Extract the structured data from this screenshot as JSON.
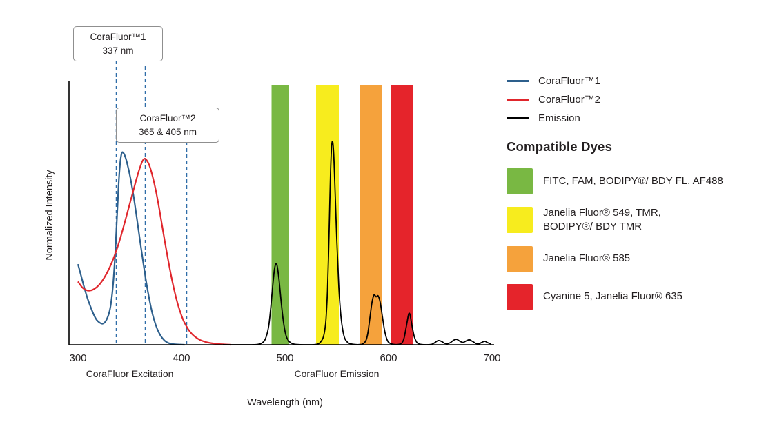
{
  "chart_data": {
    "type": "line",
    "title": "",
    "xlabel": "Wavelength (nm)",
    "ylabel": "Normalized Intensity",
    "xlim": [
      300,
      700
    ],
    "ylim": [
      0,
      1.36
    ],
    "x_ticks": [
      300,
      400,
      500,
      600,
      700
    ],
    "grid": false,
    "region_labels": [
      {
        "label": "CoraFluor Excitation",
        "center_nm": 350
      },
      {
        "label": "CoraFluor Emission",
        "center_nm": 550
      }
    ],
    "series": [
      {
        "name": "CoraFluor™1",
        "role": "excitation",
        "color": "#2d5f8c",
        "points": [
          [
            300,
            0.42
          ],
          [
            303,
            0.36
          ],
          [
            306,
            0.3
          ],
          [
            309,
            0.245
          ],
          [
            312,
            0.2
          ],
          [
            315,
            0.16
          ],
          [
            318,
            0.13
          ],
          [
            321,
            0.115
          ],
          [
            324,
            0.11
          ],
          [
            327,
            0.125
          ],
          [
            330,
            0.165
          ],
          [
            332,
            0.22
          ],
          [
            334,
            0.32
          ],
          [
            336,
            0.48
          ],
          [
            338,
            0.7
          ],
          [
            340,
            0.9
          ],
          [
            342,
            0.995
          ],
          [
            344,
            1.0
          ],
          [
            346,
            0.975
          ],
          [
            348,
            0.935
          ],
          [
            351,
            0.86
          ],
          [
            354,
            0.765
          ],
          [
            357,
            0.655
          ],
          [
            360,
            0.54
          ],
          [
            363,
            0.43
          ],
          [
            366,
            0.325
          ],
          [
            369,
            0.235
          ],
          [
            372,
            0.16
          ],
          [
            375,
            0.105
          ],
          [
            378,
            0.065
          ],
          [
            381,
            0.038
          ],
          [
            384,
            0.02
          ],
          [
            387,
            0.01
          ],
          [
            390,
            0.005
          ],
          [
            394,
            0.002
          ],
          [
            398,
            0.001
          ],
          [
            403,
            0
          ]
        ]
      },
      {
        "name": "CoraFluor™2",
        "role": "excitation",
        "color": "#e0262c",
        "points": [
          [
            300,
            0.33
          ],
          [
            304,
            0.3
          ],
          [
            308,
            0.285
          ],
          [
            312,
            0.283
          ],
          [
            316,
            0.292
          ],
          [
            320,
            0.31
          ],
          [
            324,
            0.338
          ],
          [
            328,
            0.375
          ],
          [
            332,
            0.42
          ],
          [
            336,
            0.475
          ],
          [
            340,
            0.54
          ],
          [
            344,
            0.615
          ],
          [
            348,
            0.695
          ],
          [
            352,
            0.775
          ],
          [
            356,
            0.855
          ],
          [
            359,
            0.91
          ],
          [
            362,
            0.955
          ],
          [
            364,
            0.97
          ],
          [
            366,
            0.965
          ],
          [
            369,
            0.935
          ],
          [
            372,
            0.88
          ],
          [
            375,
            0.81
          ],
          [
            378,
            0.725
          ],
          [
            381,
            0.63
          ],
          [
            384,
            0.535
          ],
          [
            387,
            0.445
          ],
          [
            390,
            0.36
          ],
          [
            393,
            0.285
          ],
          [
            396,
            0.22
          ],
          [
            399,
            0.168
          ],
          [
            402,
            0.125
          ],
          [
            406,
            0.085
          ],
          [
            410,
            0.057
          ],
          [
            414,
            0.038
          ],
          [
            418,
            0.025
          ],
          [
            423,
            0.015
          ],
          [
            428,
            0.009
          ],
          [
            434,
            0.005
          ],
          [
            440,
            0.002
          ],
          [
            448,
            0
          ]
        ]
      },
      {
        "name": "Emission",
        "role": "emission",
        "color": "#000000",
        "points": [
          [
            440,
            0
          ],
          [
            450,
            0
          ],
          [
            460,
            0
          ],
          [
            468,
            0
          ],
          [
            474,
            0.002
          ],
          [
            478,
            0.01
          ],
          [
            481,
            0.03
          ],
          [
            484,
            0.09
          ],
          [
            486,
            0.18
          ],
          [
            488,
            0.3
          ],
          [
            490,
            0.4
          ],
          [
            492,
            0.42
          ],
          [
            494,
            0.35
          ],
          [
            496,
            0.24
          ],
          [
            498,
            0.14
          ],
          [
            500,
            0.07
          ],
          [
            502,
            0.033
          ],
          [
            505,
            0.012
          ],
          [
            508,
            0.004
          ],
          [
            512,
            0.001
          ],
          [
            518,
            0
          ],
          [
            526,
            0
          ],
          [
            531,
            0.003
          ],
          [
            534,
            0.012
          ],
          [
            537,
            0.04
          ],
          [
            539,
            0.1
          ],
          [
            540,
            0.17
          ],
          [
            541,
            0.28
          ],
          [
            542,
            0.46
          ],
          [
            543,
            0.68
          ],
          [
            544,
            0.9
          ],
          [
            545,
            1.03
          ],
          [
            546,
            1.06
          ],
          [
            547,
            1.0
          ],
          [
            548,
            0.86
          ],
          [
            550,
            0.55
          ],
          [
            552,
            0.3
          ],
          [
            554,
            0.15
          ],
          [
            556,
            0.07
          ],
          [
            558,
            0.03
          ],
          [
            561,
            0.01
          ],
          [
            564,
            0.004
          ],
          [
            568,
            0.001
          ],
          [
            572,
            0.001
          ],
          [
            575,
            0.004
          ],
          [
            578,
            0.02
          ],
          [
            580,
            0.06
          ],
          [
            582,
            0.14
          ],
          [
            584,
            0.22
          ],
          [
            586,
            0.26
          ],
          [
            588,
            0.25
          ],
          [
            590,
            0.255
          ],
          [
            592,
            0.22
          ],
          [
            594,
            0.15
          ],
          [
            596,
            0.08
          ],
          [
            598,
            0.035
          ],
          [
            600,
            0.013
          ],
          [
            603,
            0.004
          ],
          [
            606,
            0.001
          ],
          [
            610,
            0.002
          ],
          [
            613,
            0.01
          ],
          [
            615,
            0.035
          ],
          [
            617,
            0.09
          ],
          [
            619,
            0.15
          ],
          [
            620,
            0.165
          ],
          [
            621,
            0.15
          ],
          [
            623,
            0.09
          ],
          [
            625,
            0.04
          ],
          [
            627,
            0.015
          ],
          [
            629,
            0.005
          ],
          [
            632,
            0.001
          ],
          [
            637,
            0
          ],
          [
            642,
            0.003
          ],
          [
            645,
            0.012
          ],
          [
            648,
            0.022
          ],
          [
            651,
            0.018
          ],
          [
            654,
            0.008
          ],
          [
            657,
            0.005
          ],
          [
            660,
            0.012
          ],
          [
            663,
            0.024
          ],
          [
            666,
            0.028
          ],
          [
            669,
            0.018
          ],
          [
            672,
            0.012
          ],
          [
            675,
            0.02
          ],
          [
            678,
            0.026
          ],
          [
            681,
            0.018
          ],
          [
            684,
            0.008
          ],
          [
            687,
            0.004
          ],
          [
            690,
            0.012
          ],
          [
            693,
            0.018
          ],
          [
            696,
            0.01
          ],
          [
            699,
            0.004
          ]
        ]
      }
    ],
    "filter_bands": [
      {
        "name": "green",
        "color": "#79b843",
        "range_nm": [
          487,
          504
        ]
      },
      {
        "name": "yellow",
        "color": "#f7ec1e",
        "range_nm": [
          530,
          552
        ]
      },
      {
        "name": "orange",
        "color": "#f5a23c",
        "range_nm": [
          572,
          594
        ]
      },
      {
        "name": "red",
        "color": "#e5242b",
        "range_nm": [
          602,
          624
        ]
      }
    ],
    "annotations": {
      "dashed_line_color": "#2f6da8",
      "dashed_lines_nm": [
        337,
        365,
        405
      ],
      "callouts": [
        {
          "line1": "CoraFluor™1",
          "line2": "337 nm"
        },
        {
          "line1": "CoraFluor™2",
          "line2": "365 & 405 nm"
        }
      ]
    }
  },
  "legend": {
    "items": [
      {
        "label": "CoraFluor™1",
        "color": "#2d5f8c"
      },
      {
        "label": "CoraFluor™2",
        "color": "#e0262c"
      },
      {
        "label": "Emission",
        "color": "#000000"
      }
    ]
  },
  "dyes": {
    "heading": "Compatible Dyes",
    "items": [
      {
        "label": "FITC, FAM, BODIPY®/ BDY FL, AF488",
        "color": "#79b843"
      },
      {
        "label": "Janelia Fluor® 549, TMR,\nBODIPY®/ BDY TMR",
        "color": "#f7ec1e"
      },
      {
        "label": "Janelia Fluor® 585",
        "color": "#f5a23c"
      },
      {
        "label": "Cyanine 5, Janelia Fluor® 635",
        "color": "#e5242b"
      }
    ]
  }
}
